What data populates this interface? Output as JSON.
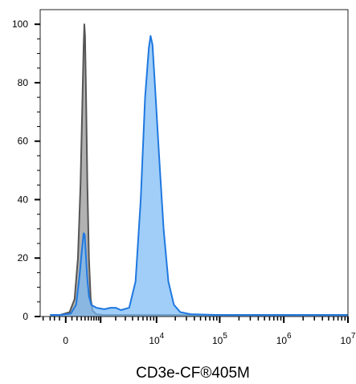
{
  "chart_data": {
    "type": "area",
    "title": "",
    "xlabel": "CD3e-CF®405M",
    "ylabel": "",
    "x_scale": "biexponential",
    "ylim": [
      0,
      105
    ],
    "y_ticks": [
      {
        "value": 0,
        "label": "0"
      },
      {
        "value": 20,
        "label": "20"
      },
      {
        "value": 40,
        "label": "40"
      },
      {
        "value": 60,
        "label": "60"
      },
      {
        "value": 80,
        "label": "80"
      },
      {
        "value": 100,
        "label": "100"
      }
    ],
    "x_ticks": [
      {
        "value": 0,
        "base": "0",
        "exp": ""
      },
      {
        "value": 10000,
        "base": "10",
        "exp": "4"
      },
      {
        "value": 100000,
        "base": "10",
        "exp": "5"
      },
      {
        "value": 1000000,
        "base": "10",
        "exp": "6"
      },
      {
        "value": 10000000,
        "base": "10",
        "exp": "7"
      }
    ],
    "grid": false,
    "legend": "none",
    "series": [
      {
        "color": "#555555",
        "fill": "#aaaaaa",
        "points": [
          [
            -300,
            0.5
          ],
          [
            -80,
            0.6
          ],
          [
            60,
            1.5
          ],
          [
            150,
            6
          ],
          [
            220,
            20
          ],
          [
            280,
            45
          ],
          [
            330,
            75
          ],
          [
            360,
            92
          ],
          [
            380,
            100
          ],
          [
            400,
            96
          ],
          [
            430,
            75
          ],
          [
            470,
            45
          ],
          [
            520,
            20
          ],
          [
            580,
            6
          ],
          [
            650,
            2
          ],
          [
            800,
            0.8
          ],
          [
            1200,
            0.5
          ],
          [
            10000000,
            0.5
          ]
        ]
      },
      {
        "color": "#1f78e0",
        "fill": "#78b9f5",
        "points": [
          [
            -300,
            0.5
          ],
          [
            -80,
            0.6
          ],
          [
            80,
            1
          ],
          [
            180,
            4
          ],
          [
            250,
            13
          ],
          [
            310,
            22
          ],
          [
            360,
            28.5
          ],
          [
            390,
            28
          ],
          [
            420,
            22
          ],
          [
            460,
            14
          ],
          [
            520,
            7
          ],
          [
            600,
            4
          ],
          [
            800,
            3
          ],
          [
            1200,
            2.5
          ],
          [
            1600,
            3
          ],
          [
            2000,
            3
          ],
          [
            2500,
            2.2
          ],
          [
            3500,
            3
          ],
          [
            4500,
            12
          ],
          [
            5500,
            40
          ],
          [
            6500,
            75
          ],
          [
            7500,
            92
          ],
          [
            8000,
            96
          ],
          [
            8600,
            93
          ],
          [
            9500,
            78
          ],
          [
            11000,
            55
          ],
          [
            13000,
            30
          ],
          [
            15500,
            12
          ],
          [
            19000,
            4
          ],
          [
            24000,
            1.5
          ],
          [
            35000,
            0.8
          ],
          [
            100000,
            0.5
          ],
          [
            10000000,
            0.5
          ]
        ]
      }
    ]
  }
}
